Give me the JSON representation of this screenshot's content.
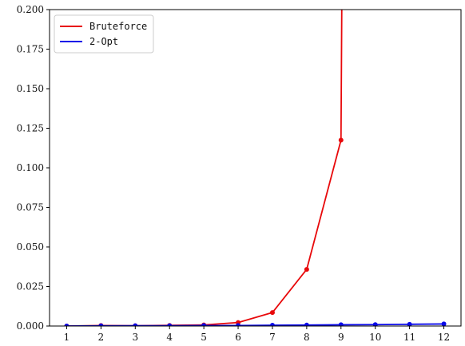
{
  "chart_data": {
    "type": "line",
    "x": [
      1,
      2,
      3,
      4,
      5,
      6,
      7,
      8,
      9,
      10,
      11,
      12
    ],
    "xlim": [
      0.5,
      12.5
    ],
    "ylim": [
      0,
      0.2
    ],
    "x_ticks": [
      "1",
      "2",
      "3",
      "4",
      "5",
      "6",
      "7",
      "8",
      "9",
      "10",
      "11",
      "12"
    ],
    "y_ticks": [
      "0.000",
      "0.025",
      "0.050",
      "0.075",
      "0.100",
      "0.125",
      "0.150",
      "0.175",
      "0.200"
    ],
    "y_tick_values": [
      0,
      0.025,
      0.05,
      0.075,
      0.1,
      0.125,
      0.15,
      0.175,
      0.2
    ],
    "grid": false,
    "legend": "top-left",
    "series": [
      {
        "name": "Bruteforce",
        "color": "#e8090b",
        "x": [
          1,
          2,
          3,
          4,
          5,
          6,
          7,
          8,
          9,
          9.05
        ],
        "values": [
          0.0,
          0.0003,
          0.0002,
          0.0004,
          0.0007,
          0.0022,
          0.0085,
          0.0358,
          0.1175,
          0.3
        ],
        "markers": [
          true,
          true,
          true,
          true,
          true,
          true,
          true,
          true,
          true,
          false
        ]
      },
      {
        "name": "2-Opt",
        "color": "#0a0ae8",
        "x": [
          1,
          2,
          3,
          4,
          5,
          6,
          7,
          8,
          9,
          10,
          11,
          12
        ],
        "values": [
          0.0,
          0.0001,
          0.0002,
          0.0002,
          0.0003,
          0.0003,
          0.0005,
          0.0006,
          0.0008,
          0.0009,
          0.0011,
          0.0013
        ],
        "markers": [
          true,
          true,
          true,
          true,
          true,
          true,
          true,
          true,
          true,
          true,
          true,
          true
        ]
      }
    ]
  }
}
